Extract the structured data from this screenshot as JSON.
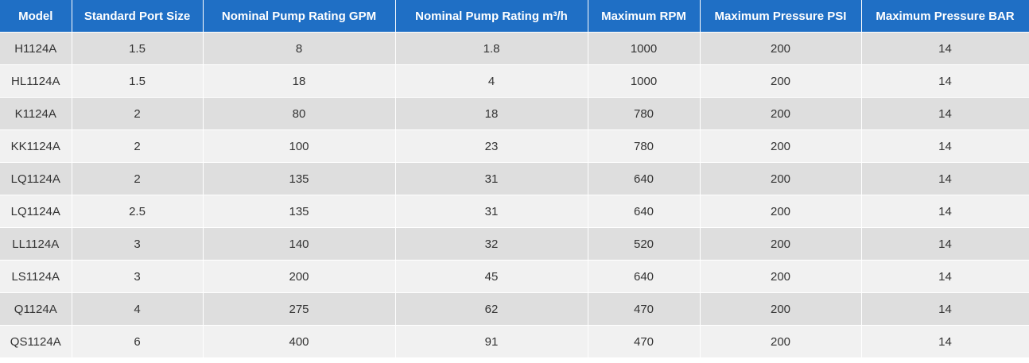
{
  "table": {
    "headers": [
      "Model",
      "Standard Port Size",
      "Nominal Pump Rating GPM",
      "Nominal Pump Rating m³/h",
      "Maximum RPM",
      "Maximum Pressure PSI",
      "Maximum Pressure BAR"
    ],
    "rows": [
      [
        "H1124A",
        "1.5",
        "8",
        "1.8",
        "1000",
        "200",
        "14"
      ],
      [
        "HL1124A",
        "1.5",
        "18",
        "4",
        "1000",
        "200",
        "14"
      ],
      [
        "K1124A",
        "2",
        "80",
        "18",
        "780",
        "200",
        "14"
      ],
      [
        "KK1124A",
        "2",
        "100",
        "23",
        "780",
        "200",
        "14"
      ],
      [
        "LQ1124A",
        "2",
        "135",
        "31",
        "640",
        "200",
        "14"
      ],
      [
        "LQ1124A",
        "2.5",
        "135",
        "31",
        "640",
        "200",
        "14"
      ],
      [
        "LL1124A",
        "3",
        "140",
        "32",
        "520",
        "200",
        "14"
      ],
      [
        "LS1124A",
        "3",
        "200",
        "45",
        "640",
        "200",
        "14"
      ],
      [
        "Q1124A",
        "4",
        "275",
        "62",
        "470",
        "200",
        "14"
      ],
      [
        "QS1124A",
        "6",
        "400",
        "91",
        "470",
        "200",
        "14"
      ]
    ]
  }
}
